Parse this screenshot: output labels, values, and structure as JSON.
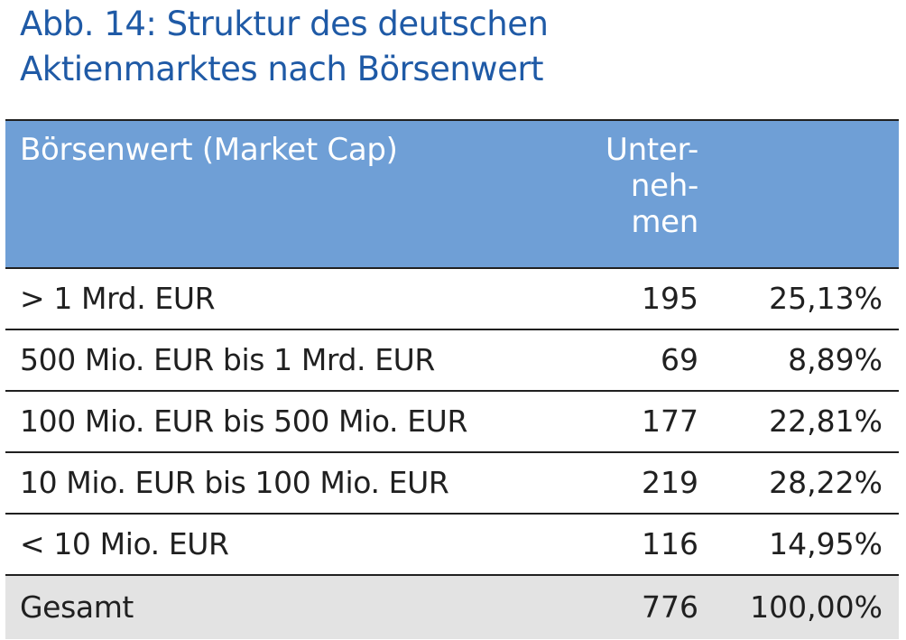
{
  "title": {
    "line1": "Abb. 14: Struktur des deutschen",
    "line2": "Aktienmarktes nach Börsenwert"
  },
  "colors": {
    "title": "#1f5aa6",
    "header_bg": "#6f9fd6",
    "header_text": "#ffffff",
    "total_bg": "#e3e3e3",
    "rule": "#202020"
  },
  "chart_data": {
    "type": "table",
    "title": "Abb. 14: Struktur des deutschen Aktienmarktes nach Börsenwert",
    "columns": [
      "Börsenwert (Market Cap)",
      "Unter-neh-men",
      ""
    ],
    "header": {
      "cap": "Börsenwert (Market Cap)",
      "count_lines": [
        "Unter-",
        "neh-",
        "men"
      ],
      "pct": ""
    },
    "rows": [
      {
        "cap": "> 1 Mrd. EUR",
        "count": "195",
        "pct": "25,13%"
      },
      {
        "cap": "500 Mio. EUR bis 1 Mrd. EUR",
        "count": "69",
        "pct": "8,89%"
      },
      {
        "cap": "100 Mio. EUR bis 500 Mio. EUR",
        "count": "177",
        "pct": "22,81%"
      },
      {
        "cap": "10 Mio. EUR bis 100 Mio. EUR",
        "count": "219",
        "pct": "28,22%"
      },
      {
        "cap": "< 10 Mio. EUR",
        "count": "116",
        "pct": "14,95%"
      }
    ],
    "total": {
      "cap": "Gesamt",
      "count": "776",
      "pct": "100,00%"
    }
  }
}
